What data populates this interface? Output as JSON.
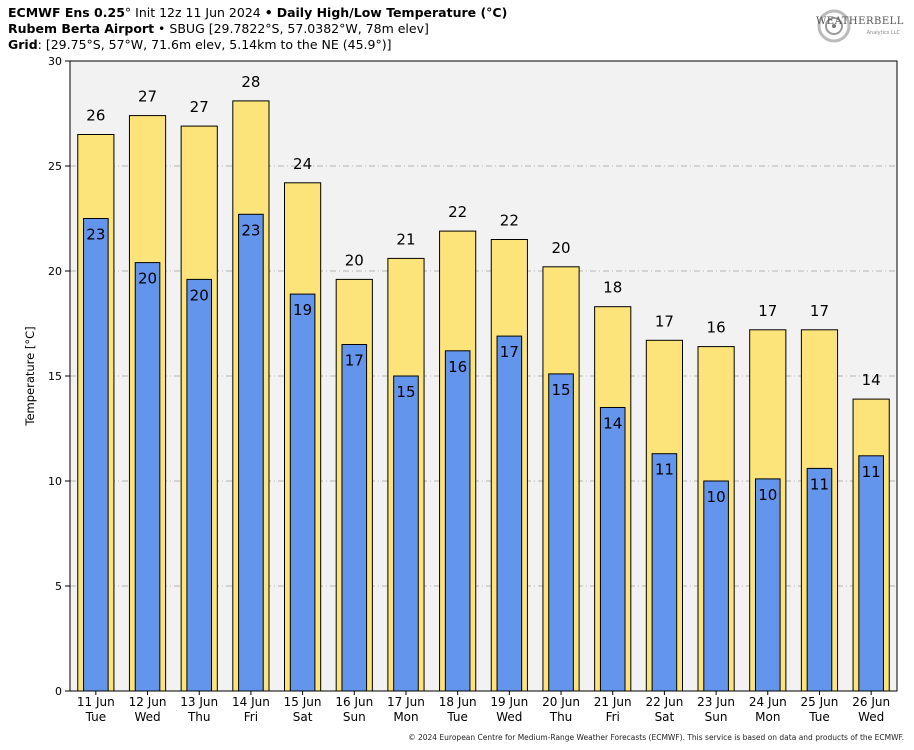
{
  "header": {
    "model": "ECMWF Ens 0.25",
    "model_degree": "°",
    "init": "Init 12z 11 Jun 2024",
    "sep": "•",
    "product": "Daily High/Low Temperature (°C)",
    "station_name": "Rubem Berta Airport",
    "station_info": "SBUG [29.7822°S, 57.0382°W, 78m elev]",
    "grid_label": "Grid",
    "grid_info": ": [29.75°S, 57°W, 71.6m elev, 5.14km to the NE (45.9°)]"
  },
  "logo": {
    "text": "WEATHERBELL",
    "sub": "Analytics LLC"
  },
  "footer": "© 2024 European Centre for Medium-Range Weather Forecasts (ECMWF). This service is based on data and products of the ECMWF.",
  "colors": {
    "high": "#fce37a",
    "low": "#6495ed",
    "plot_bg": "#f2f2f2",
    "grid": "#b4b4b4"
  },
  "chart_data": {
    "type": "bar",
    "title": "Daily High/Low Temperature (°C)",
    "ylabel": "Temperature [°C]",
    "xlabel": "",
    "ylim": [
      0,
      30
    ],
    "yticks": [
      0,
      5,
      10,
      15,
      20,
      25,
      30
    ],
    "grid": true,
    "categories": [
      {
        "date": "11 Jun",
        "day": "Tue"
      },
      {
        "date": "12 Jun",
        "day": "Wed"
      },
      {
        "date": "13 Jun",
        "day": "Thu"
      },
      {
        "date": "14 Jun",
        "day": "Fri"
      },
      {
        "date": "15 Jun",
        "day": "Sat"
      },
      {
        "date": "16 Jun",
        "day": "Sun"
      },
      {
        "date": "17 Jun",
        "day": "Mon"
      },
      {
        "date": "18 Jun",
        "day": "Tue"
      },
      {
        "date": "19 Jun",
        "day": "Wed"
      },
      {
        "date": "20 Jun",
        "day": "Thu"
      },
      {
        "date": "21 Jun",
        "day": "Fri"
      },
      {
        "date": "22 Jun",
        "day": "Sat"
      },
      {
        "date": "23 Jun",
        "day": "Sun"
      },
      {
        "date": "24 Jun",
        "day": "Mon"
      },
      {
        "date": "25 Jun",
        "day": "Tue"
      },
      {
        "date": "26 Jun",
        "day": "Wed"
      }
    ],
    "series": [
      {
        "name": "High",
        "values": [
          26.5,
          27.4,
          26.9,
          28.1,
          24.2,
          19.6,
          20.6,
          21.9,
          21.5,
          20.2,
          18.3,
          16.7,
          16.4,
          17.2,
          17.2,
          13.9
        ],
        "labels": [
          "26",
          "27",
          "27",
          "28",
          "24",
          "20",
          "21",
          "22",
          "22",
          "20",
          "18",
          "17",
          "16",
          "17",
          "17",
          "14"
        ]
      },
      {
        "name": "Low",
        "values": [
          22.5,
          20.4,
          19.6,
          22.7,
          18.9,
          16.5,
          15.0,
          16.2,
          16.9,
          15.1,
          13.5,
          11.3,
          10.0,
          10.1,
          10.6,
          11.2
        ],
        "labels": [
          "23",
          "20",
          "20",
          "23",
          "19",
          "17",
          "15",
          "16",
          "17",
          "15",
          "14",
          "11",
          "10",
          "10",
          "11",
          "11"
        ]
      }
    ]
  }
}
